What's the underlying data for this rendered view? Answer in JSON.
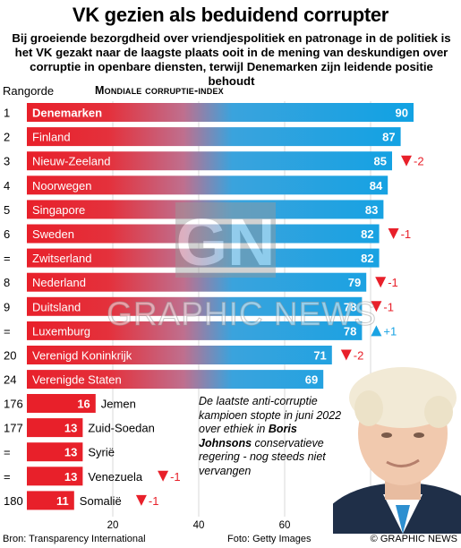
{
  "header": {
    "title": "VK gezien als beduidend corrupter",
    "subtitle": "Bij groeiende bezorgdheid over vriendjespolitiek en patronage in de politiek is het VK gezakt naar de laagste plaats ooit in de mening van deskundigen over corruptie in openbare diensten, terwijl Denemarken zijn leidende positie behoudt",
    "rank_header": "Rangorde",
    "index_header": "Mondiale corruptie-index"
  },
  "chart_data": {
    "type": "bar",
    "title": "Mondiale corruptie-index",
    "xlim": [
      0,
      100
    ],
    "xticks": [
      20,
      40,
      60,
      80
    ],
    "rows": [
      {
        "rank": "1",
        "country": "Denemarken",
        "value": 90,
        "change": "",
        "dir": "",
        "bold": true
      },
      {
        "rank": "2",
        "country": "Finland",
        "value": 87,
        "change": "",
        "dir": ""
      },
      {
        "rank": "3",
        "country": "Nieuw-Zeeland",
        "value": 85,
        "change": "-2",
        "dir": "down"
      },
      {
        "rank": "4",
        "country": "Noorwegen",
        "value": 84,
        "change": "",
        "dir": ""
      },
      {
        "rank": "5",
        "country": "Singapore",
        "value": 83,
        "change": "",
        "dir": ""
      },
      {
        "rank": "6",
        "country": "Sweden",
        "value": 82,
        "change": "-1",
        "dir": "down"
      },
      {
        "rank": "=",
        "country": "Zwitserland",
        "value": 82,
        "change": "",
        "dir": ""
      },
      {
        "rank": "8",
        "country": "Nederland",
        "value": 79,
        "change": "-1",
        "dir": "down"
      },
      {
        "rank": "9",
        "country": "Duitsland",
        "value": 78,
        "change": "-1",
        "dir": "down"
      },
      {
        "rank": "=",
        "country": "Luxemburg",
        "value": 78,
        "change": "+1",
        "dir": "up"
      },
      {
        "rank": "20",
        "country": "Verenigd Koninkrijk",
        "value": 71,
        "change": "-2",
        "dir": "down"
      },
      {
        "rank": "24",
        "country": "Verenigde Staten",
        "value": 69,
        "change": "",
        "dir": ""
      },
      {
        "rank": "176",
        "country": "Jemen",
        "value": 16,
        "change": "",
        "dir": ""
      },
      {
        "rank": "177",
        "country": "Zuid-Soedan",
        "value": 13,
        "change": "",
        "dir": ""
      },
      {
        "rank": "=",
        "country": "Syrië",
        "value": 13,
        "change": "",
        "dir": ""
      },
      {
        "rank": "=",
        "country": "Venezuela",
        "value": 13,
        "change": "-1",
        "dir": "down"
      },
      {
        "rank": "180",
        "country": "Somalië",
        "value": 11,
        "change": "-1",
        "dir": "down"
      }
    ]
  },
  "caption": {
    "part1": "De laatste anti-corruptie kampioen stopte in juni 2022 over ethiek in ",
    "bold": "Boris Johnsons",
    "part2": " conservatieve regering - nog steeds niet vervangen"
  },
  "watermark": {
    "logo": "GN",
    "text": "GRAPHIC NEWS"
  },
  "footer": {
    "source": "Bron: Transparency International",
    "photo": "Foto: Getty Images",
    "brand": "© GRAPHIC NEWS"
  },
  "colors": {
    "red": "#e8202a",
    "blue": "#1aa3e3",
    "up": "#1aa3e3",
    "down": "#e8202a"
  }
}
